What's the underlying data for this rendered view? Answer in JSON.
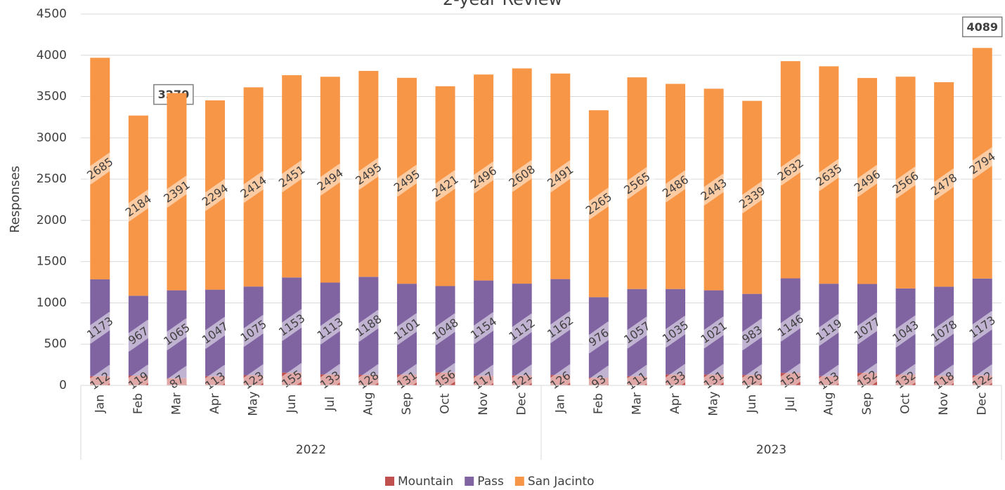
{
  "chart_data": {
    "type": "stacked_bar",
    "title": "2-year Review",
    "y_label": "Responses",
    "categories": [
      "Jan",
      "Feb",
      "Mar",
      "Apr",
      "May",
      "Jun",
      "Jul",
      "Aug",
      "Sep",
      "Oct",
      "Nov",
      "Dec",
      "Jan",
      "Feb",
      "Mar",
      "Apr",
      "May",
      "Jun",
      "Jul",
      "Aug",
      "Sep",
      "Oct",
      "Nov",
      "Dec"
    ],
    "groups": [
      "2022",
      "2023"
    ],
    "series": [
      {
        "name": "Mountain",
        "color": "#c0504d",
        "values": [
          112,
          119,
          87,
          113,
          123,
          155,
          133,
          128,
          131,
          156,
          117,
          121,
          126,
          93,
          111,
          133,
          131,
          126,
          151,
          113,
          152,
          132,
          118,
          122
        ]
      },
      {
        "name": "Pass",
        "color": "#8064a2",
        "values": [
          1173,
          967,
          1065,
          1047,
          1075,
          1153,
          1113,
          1188,
          1101,
          1048,
          1154,
          1112,
          1162,
          976,
          1057,
          1035,
          1021,
          983,
          1146,
          1119,
          1077,
          1043,
          1078,
          1173
        ]
      },
      {
        "name": "San Jacinto",
        "color": "#f79646",
        "values": [
          2685,
          2184,
          2391,
          2294,
          2414,
          2451,
          2494,
          2495,
          2495,
          2421,
          2496,
          2608,
          2491,
          2265,
          2565,
          2486,
          2443,
          2339,
          2632,
          2635,
          2496,
          2566,
          2478,
          2794
        ]
      }
    ],
    "annotations": [
      3270,
      4089
    ],
    "ylim": [
      0,
      4500
    ],
    "yticks": [
      0,
      500,
      1000,
      1500,
      2000,
      2500,
      3000,
      3500,
      4000,
      4500
    ],
    "grid": true,
    "legend": "bottom"
  }
}
